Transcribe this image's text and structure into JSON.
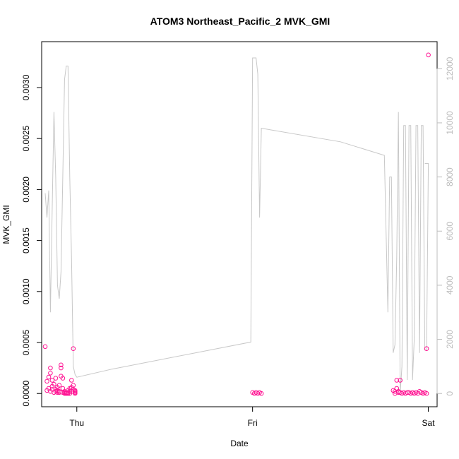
{
  "chart_data": {
    "type": "scatter",
    "title": "ATOM3 Northeast_Pacific_2 MVK_GMI",
    "xlabel": "Date",
    "ylabel": "MVK_GMI",
    "x_ticks": [
      "Thu",
      "Fri",
      "Sat"
    ],
    "xlim": [
      -0.2,
      2.05
    ],
    "y_ticks": [
      "0.0000",
      "0.0005",
      "0.0010",
      "0.0015",
      "0.0020",
      "0.0025",
      "0.0030"
    ],
    "y_tick_values": [
      0,
      0.0005,
      0.001,
      0.0015,
      0.002,
      0.0025,
      0.003
    ],
    "ylim": [
      -0.00013,
      0.00345
    ],
    "y2_ticks": [
      "0",
      "2000",
      "4000",
      "6000",
      "8000",
      "10000",
      "12000"
    ],
    "y2_tick_values": [
      0,
      2000,
      4000,
      6000,
      8000,
      10000,
      12000
    ],
    "y2lim": [
      -490,
      13000
    ],
    "grid": false,
    "series": [
      {
        "kind": "points",
        "color": "#ff1493",
        "x": [
          -0.18,
          -0.17,
          -0.17,
          -0.16,
          -0.16,
          -0.15,
          -0.15,
          -0.15,
          -0.14,
          -0.14,
          -0.14,
          -0.13,
          -0.13,
          -0.12,
          -0.12,
          -0.12,
          -0.11,
          -0.11,
          -0.11,
          -0.1,
          -0.1,
          -0.1,
          -0.09,
          -0.09,
          -0.09,
          -0.08,
          -0.08,
          -0.08,
          -0.07,
          -0.07,
          -0.07,
          -0.06,
          -0.06,
          -0.06,
          -0.05,
          -0.05,
          -0.05,
          -0.04,
          -0.04,
          -0.04,
          -0.03,
          -0.03,
          -0.03,
          -0.02,
          -0.02,
          -0.02,
          -0.01,
          -0.01,
          -0.01,
          -0.01,
          1.0,
          1.01,
          1.02,
          1.03,
          1.04,
          1.05,
          1.8,
          1.81,
          1.81,
          1.82,
          1.82,
          1.83,
          1.83,
          1.84,
          1.84,
          1.85,
          1.86,
          1.87,
          1.88,
          1.89,
          1.9,
          1.91,
          1.92,
          1.93,
          1.94,
          1.95,
          1.96,
          1.97,
          1.98,
          1.99,
          1.99,
          2.0
        ],
        "y": [
          0.00046,
          0.00012,
          3e-05,
          0.00016,
          5e-05,
          0.00025,
          0.0002,
          2e-05,
          0.00013,
          4e-05,
          7e-05,
          9e-05,
          1e-05,
          0.00015,
          4e-05,
          2e-05,
          6e-05,
          1e-05,
          3e-05,
          1e-05,
          2e-05,
          8e-05,
          0.00017,
          0.00025,
          0.00028,
          1e-05,
          5e-05,
          0.00015,
          2e-05,
          1e-05,
          0.0,
          1e-05,
          0.0,
          1e-05,
          0.0,
          3e-05,
          1e-05,
          0.0,
          2e-05,
          5e-05,
          2e-05,
          6e-05,
          0.00013,
          8e-05,
          0.00044,
          4e-05,
          1e-05,
          2e-05,
          3e-05,
          0.0,
          1e-05,
          0.0,
          1e-05,
          0.0,
          1e-05,
          0.0,
          3e-05,
          2e-05,
          0.0,
          5e-05,
          0.00013,
          2e-05,
          1e-05,
          0.00013,
          1e-05,
          0.0,
          1e-05,
          0.0,
          1e-05,
          1e-05,
          0.0,
          1e-05,
          0.0,
          1e-05,
          0.0,
          2e-05,
          1e-05,
          0.0,
          1e-05,
          0.0,
          0.00044,
          0.00332
        ]
      },
      {
        "kind": "line",
        "axis": "right",
        "color": "#c8c8c8",
        "x": [
          -0.18,
          -0.17,
          -0.16,
          -0.15,
          -0.14,
          -0.13,
          -0.12,
          -0.11,
          -0.1,
          -0.09,
          -0.08,
          -0.07,
          -0.06,
          -0.05,
          -0.04,
          -0.03,
          -0.02,
          -0.01,
          0.0,
          0.2,
          0.99,
          1.0,
          1.01,
          1.02,
          1.03,
          1.04,
          1.05,
          1.05,
          1.5,
          1.75,
          1.77,
          1.78,
          1.79,
          1.8,
          1.81,
          1.82,
          1.83,
          1.84,
          1.85,
          1.86,
          1.87,
          1.88,
          1.89,
          1.9,
          1.91,
          1.92,
          1.93,
          1.94,
          1.95,
          1.96,
          1.97,
          1.98,
          1.99,
          2.0,
          1.98
        ],
        "y": [
          7400,
          6500,
          7500,
          3000,
          6800,
          10400,
          8000,
          4000,
          3500,
          4500,
          8000,
          11600,
          12100,
          12100,
          8000,
          5000,
          1000,
          700,
          600,
          900,
          1900,
          12400,
          12400,
          12400,
          11800,
          6500,
          9800,
          9800,
          9300,
          8800,
          3000,
          8000,
          8000,
          1500,
          1800,
          5000,
          10400,
          0,
          1000,
          9900,
          9900,
          500,
          9900,
          9900,
          500,
          2000,
          9900,
          9900,
          1500,
          9900,
          9900,
          1600,
          1600,
          8500,
          8500
        ]
      }
    ]
  }
}
